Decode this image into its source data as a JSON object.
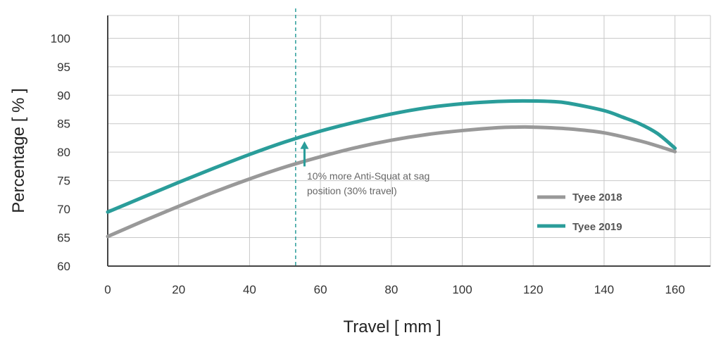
{
  "chart_data": {
    "type": "line",
    "xlabel": "Travel [ mm ]",
    "ylabel": "Percentage [ % ]",
    "xlim": [
      0,
      170
    ],
    "ylim": [
      60,
      104
    ],
    "x_ticks": [
      0,
      20,
      40,
      60,
      80,
      100,
      120,
      140,
      160
    ],
    "y_ticks": [
      60,
      65,
      70,
      75,
      80,
      85,
      90,
      95,
      100
    ],
    "grid": true,
    "legend_position": "bottom-right",
    "series": [
      {
        "name": "Tyee 2018",
        "color": "#999999",
        "x": [
          0,
          10,
          20,
          30,
          40,
          50,
          60,
          70,
          80,
          90,
          100,
          110,
          115,
          120,
          130,
          140,
          150,
          155,
          160
        ],
        "y": [
          65.2,
          67.9,
          70.5,
          73.0,
          75.3,
          77.4,
          79.2,
          80.8,
          82.1,
          83.1,
          83.8,
          84.3,
          84.4,
          84.4,
          84.1,
          83.4,
          82.0,
          81.1,
          80.1
        ]
      },
      {
        "name": "Tyee 2019",
        "color": "#2a9d9a",
        "x": [
          0,
          10,
          20,
          30,
          40,
          50,
          60,
          70,
          80,
          90,
          100,
          110,
          117,
          125,
          130,
          140,
          145,
          150,
          155,
          160
        ],
        "y": [
          69.5,
          72.1,
          74.7,
          77.2,
          79.6,
          81.8,
          83.7,
          85.3,
          86.7,
          87.8,
          88.5,
          88.9,
          89.0,
          88.9,
          88.6,
          87.3,
          86.2,
          85.0,
          83.3,
          80.7
        ]
      }
    ],
    "reference_line": {
      "x": 53,
      "color": "#2a9d9a",
      "style": "dashed"
    },
    "annotation": {
      "lines": [
        "10% more Anti-Squat at sag",
        "position (30% travel)"
      ],
      "arrow_x": 55.5,
      "arrow_from": 77.5,
      "arrow_to": 81.8,
      "arrow_color": "#2a9d9a"
    }
  }
}
